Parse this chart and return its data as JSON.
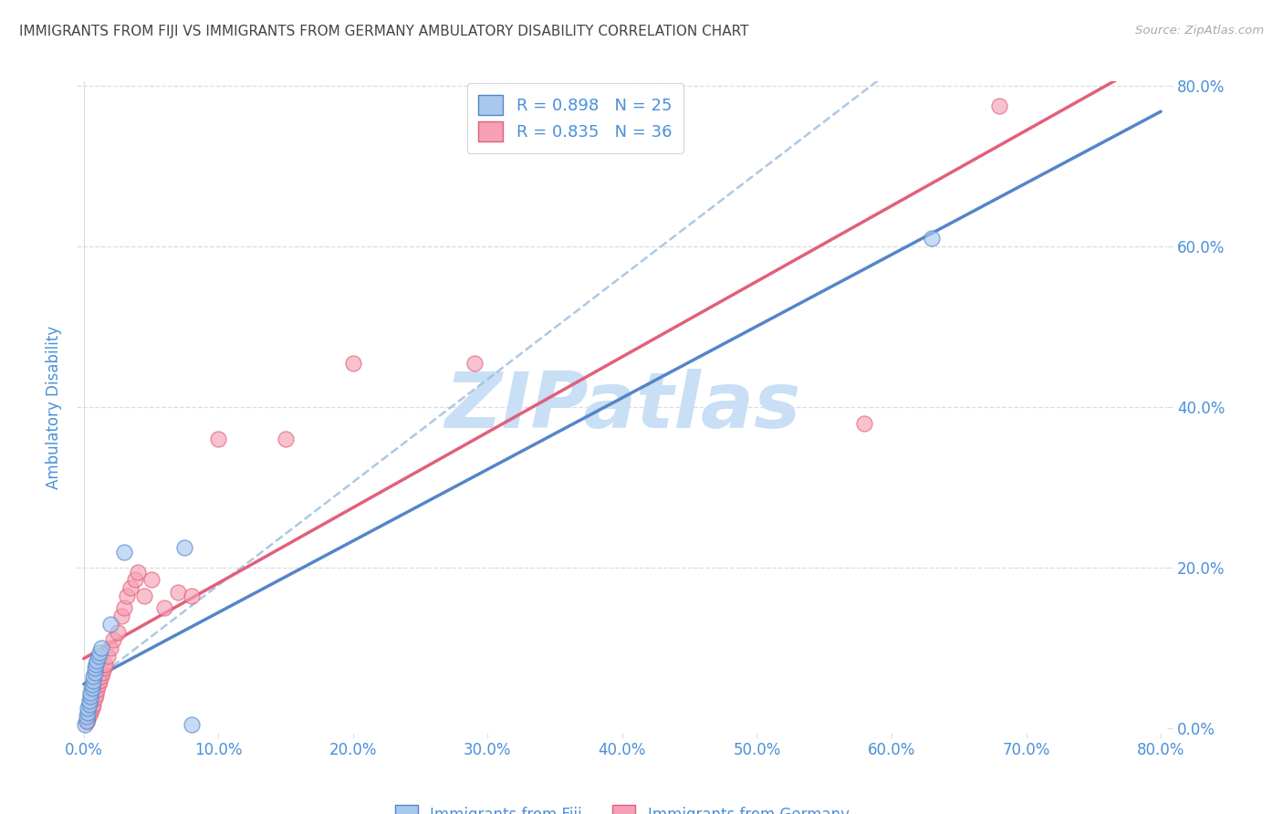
{
  "title": "IMMIGRANTS FROM FIJI VS IMMIGRANTS FROM GERMANY AMBULATORY DISABILITY CORRELATION CHART",
  "source": "Source: ZipAtlas.com",
  "ylabel": "Ambulatory Disability",
  "fiji_R": 0.898,
  "fiji_N": 25,
  "germany_R": 0.835,
  "germany_N": 36,
  "fiji_scatter_color": "#a8c8f0",
  "fiji_line_color": "#5585c8",
  "germany_scatter_color": "#f5a0b5",
  "germany_line_color": "#e0607a",
  "dashed_line_color": "#99bbdd",
  "axis_label_color": "#4a90d9",
  "title_color": "#444444",
  "source_color": "#aaaaaa",
  "watermark_color": "#c8dff5",
  "grid_color": "#dddddd",
  "background_color": "#ffffff",
  "xticks": [
    0.0,
    0.1,
    0.2,
    0.3,
    0.4,
    0.5,
    0.6,
    0.7,
    0.8
  ],
  "yticks": [
    0.0,
    0.2,
    0.4,
    0.6,
    0.8
  ],
  "fiji_scatter_x": [
    0.001,
    0.002,
    0.002,
    0.003,
    0.003,
    0.004,
    0.004,
    0.005,
    0.005,
    0.006,
    0.006,
    0.007,
    0.007,
    0.008,
    0.008,
    0.009,
    0.01,
    0.011,
    0.012,
    0.013,
    0.02,
    0.03,
    0.63,
    0.075,
    0.08
  ],
  "fiji_scatter_y": [
    0.005,
    0.01,
    0.015,
    0.02,
    0.025,
    0.03,
    0.035,
    0.04,
    0.045,
    0.05,
    0.055,
    0.06,
    0.065,
    0.07,
    0.075,
    0.08,
    0.085,
    0.09,
    0.095,
    0.1,
    0.13,
    0.22,
    0.61,
    0.225,
    0.005
  ],
  "germany_scatter_x": [
    0.002,
    0.003,
    0.004,
    0.005,
    0.006,
    0.007,
    0.008,
    0.009,
    0.01,
    0.011,
    0.012,
    0.013,
    0.014,
    0.015,
    0.016,
    0.018,
    0.02,
    0.022,
    0.025,
    0.028,
    0.03,
    0.032,
    0.035,
    0.038,
    0.04,
    0.045,
    0.05,
    0.06,
    0.07,
    0.08,
    0.1,
    0.15,
    0.2,
    0.29,
    0.68,
    0.58
  ],
  "germany_scatter_y": [
    0.008,
    0.012,
    0.018,
    0.02,
    0.025,
    0.03,
    0.038,
    0.042,
    0.048,
    0.055,
    0.06,
    0.065,
    0.07,
    0.075,
    0.08,
    0.09,
    0.1,
    0.11,
    0.12,
    0.14,
    0.15,
    0.165,
    0.175,
    0.185,
    0.195,
    0.165,
    0.185,
    0.15,
    0.17,
    0.165,
    0.36,
    0.36,
    0.455,
    0.455,
    0.775,
    0.38
  ],
  "fiji_line_slope": 0.96,
  "fiji_line_intercept": 0.003,
  "germany_line_slope": 1.12,
  "germany_line_intercept": 0.005,
  "dashed_line_slope": 0.76,
  "dashed_line_intercept": 0.003
}
